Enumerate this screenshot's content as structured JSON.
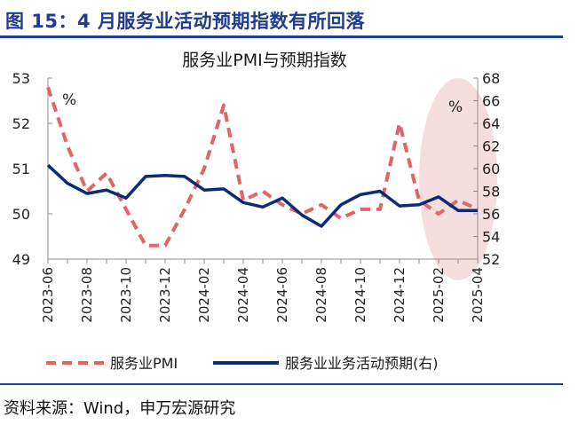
{
  "figure": {
    "title": "图 15：4 月服务业活动预期指数有所回落",
    "source": "资料来源：Wind，申万宏源研究"
  },
  "colors": {
    "brand_blue": "#1f3c8f",
    "pmi_line": "#e06666",
    "expectation_line": "#0d2a78",
    "highlight_ellipse": "#f4d6d6"
  },
  "chart_data": {
    "type": "line",
    "title": "服务业PMI与预期指数",
    "x": [
      "2023-06",
      "2023-07",
      "2023-08",
      "2023-09",
      "2023-10",
      "2023-11",
      "2023-12",
      "2024-01",
      "2024-02",
      "2024-03",
      "2024-04",
      "2024-05",
      "2024-06",
      "2024-07",
      "2024-08",
      "2024-09",
      "2024-10",
      "2024-11",
      "2024-12",
      "2025-01",
      "2025-02",
      "2025-03",
      "2025-04"
    ],
    "x_tick_labels": [
      "2023-06",
      "2023-08",
      "2023-10",
      "2023-12",
      "2024-02",
      "2024-04",
      "2024-06",
      "2024-08",
      "2024-10",
      "2024-12",
      "2025-02",
      "2025-04"
    ],
    "y_left": {
      "unit": "%",
      "ylim": [
        49,
        53
      ],
      "ticks": [
        49,
        50,
        51,
        52,
        53
      ]
    },
    "y_right": {
      "unit": "%",
      "ylim": [
        52,
        68
      ],
      "ticks": [
        52,
        54,
        56,
        58,
        60,
        62,
        64,
        66,
        68
      ]
    },
    "series": [
      {
        "name": "服务业PMI",
        "axis": "left",
        "style": "dashed",
        "values": [
          52.8,
          51.5,
          50.5,
          50.9,
          50.1,
          49.3,
          49.3,
          50.1,
          51.0,
          52.4,
          50.3,
          50.5,
          50.2,
          50.0,
          50.2,
          49.9,
          50.1,
          50.1,
          52.0,
          50.3,
          50.0,
          50.3,
          50.1
        ]
      },
      {
        "name": "服务业业务活动预期(右)",
        "axis": "right",
        "style": "solid",
        "values": [
          60.3,
          58.7,
          57.8,
          58.1,
          57.4,
          59.3,
          59.4,
          59.3,
          58.1,
          58.2,
          57.0,
          56.6,
          57.4,
          55.9,
          54.9,
          56.8,
          57.7,
          58.0,
          56.7,
          56.8,
          57.5,
          56.3,
          56.3
        ]
      }
    ],
    "highlight": {
      "from": "2025-02",
      "to": "2025-04",
      "shape": "ellipse"
    },
    "legend_position": "bottom",
    "grid": false
  }
}
